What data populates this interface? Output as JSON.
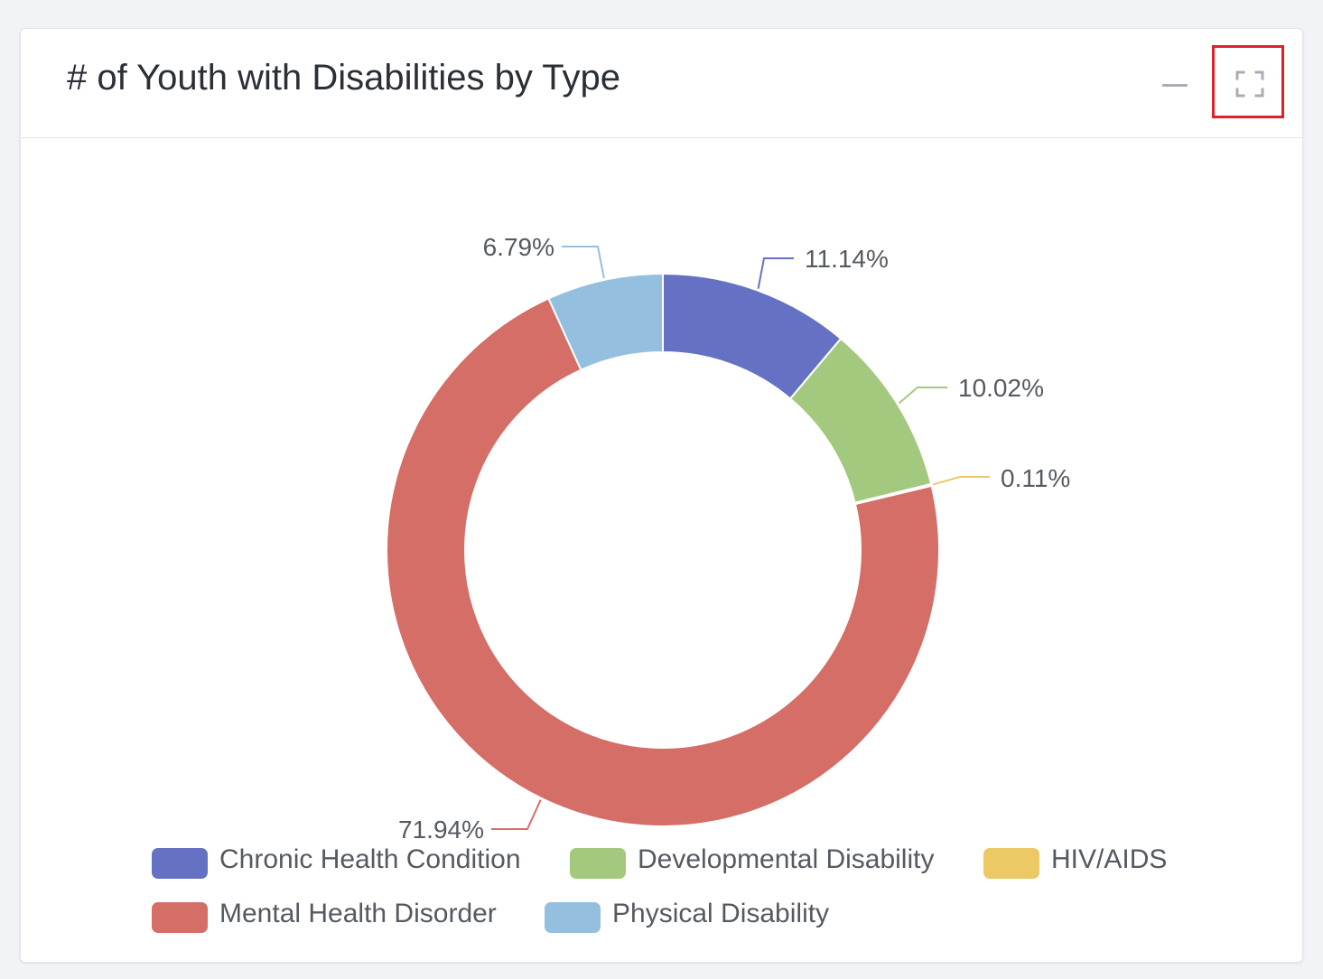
{
  "header": {
    "title": "# of Youth with Disabilities by Type",
    "minimize_icon": "minus-icon",
    "expand_icon": "fullscreen-icon"
  },
  "chart_data": {
    "type": "pie",
    "variant": "donut",
    "title": "# of Youth with Disabilities by Type",
    "labels": [
      "Chronic Health Condition",
      "Developmental Disability",
      "HIV/AIDS",
      "Mental Health Disorder",
      "Physical Disability"
    ],
    "values": [
      11.14,
      10.02,
      0.11,
      71.94,
      6.79
    ],
    "value_labels": [
      "11.14%",
      "10.02%",
      "0.11%",
      "71.94%",
      "6.79%"
    ],
    "unit": "%",
    "colors": [
      "#6571c3",
      "#a3c97e",
      "#ebc965",
      "#d46e67",
      "#95bfdf"
    ],
    "legend": {
      "position": "bottom",
      "items": [
        {
          "label": "Chronic Health Condition",
          "color": "#6571c3"
        },
        {
          "label": "Developmental Disability",
          "color": "#a3c97e"
        },
        {
          "label": "HIV/AIDS",
          "color": "#ebc965"
        },
        {
          "label": "Mental Health Disorder",
          "color": "#d46e67"
        },
        {
          "label": "Physical Disability",
          "color": "#95bfdf"
        }
      ]
    }
  }
}
